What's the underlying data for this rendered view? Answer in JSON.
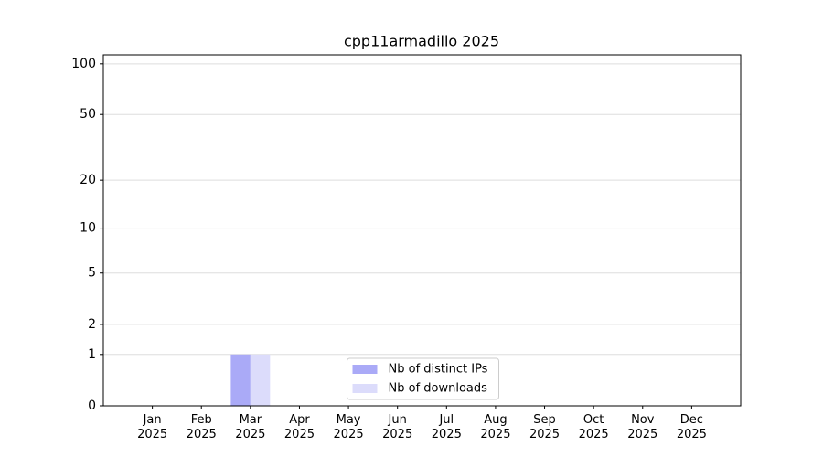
{
  "chart_data": {
    "type": "bar",
    "title": "cpp11armadillo 2025",
    "categories": [
      "Jan\n2025",
      "Feb\n2025",
      "Mar\n2025",
      "Apr\n2025",
      "May\n2025",
      "Jun\n2025",
      "Jul\n2025",
      "Aug\n2025",
      "Sep\n2025",
      "Oct\n2025",
      "Nov\n2025",
      "Dec\n2025"
    ],
    "series": [
      {
        "name": "Nb of distinct IPs",
        "color": "#aaaaf7",
        "values": [
          0,
          0,
          1,
          0,
          0,
          0,
          0,
          0,
          0,
          0,
          0,
          0
        ]
      },
      {
        "name": "Nb of downloads",
        "color": "#dcdcfb",
        "values": [
          0,
          0,
          1,
          0,
          0,
          0,
          0,
          0,
          0,
          0,
          0,
          0
        ]
      }
    ],
    "yscale": "log1p",
    "ylim": [
      0,
      113
    ],
    "yticks": [
      0,
      1,
      2,
      5,
      10,
      20,
      50,
      100
    ],
    "grid": true,
    "legend": "lower center"
  }
}
